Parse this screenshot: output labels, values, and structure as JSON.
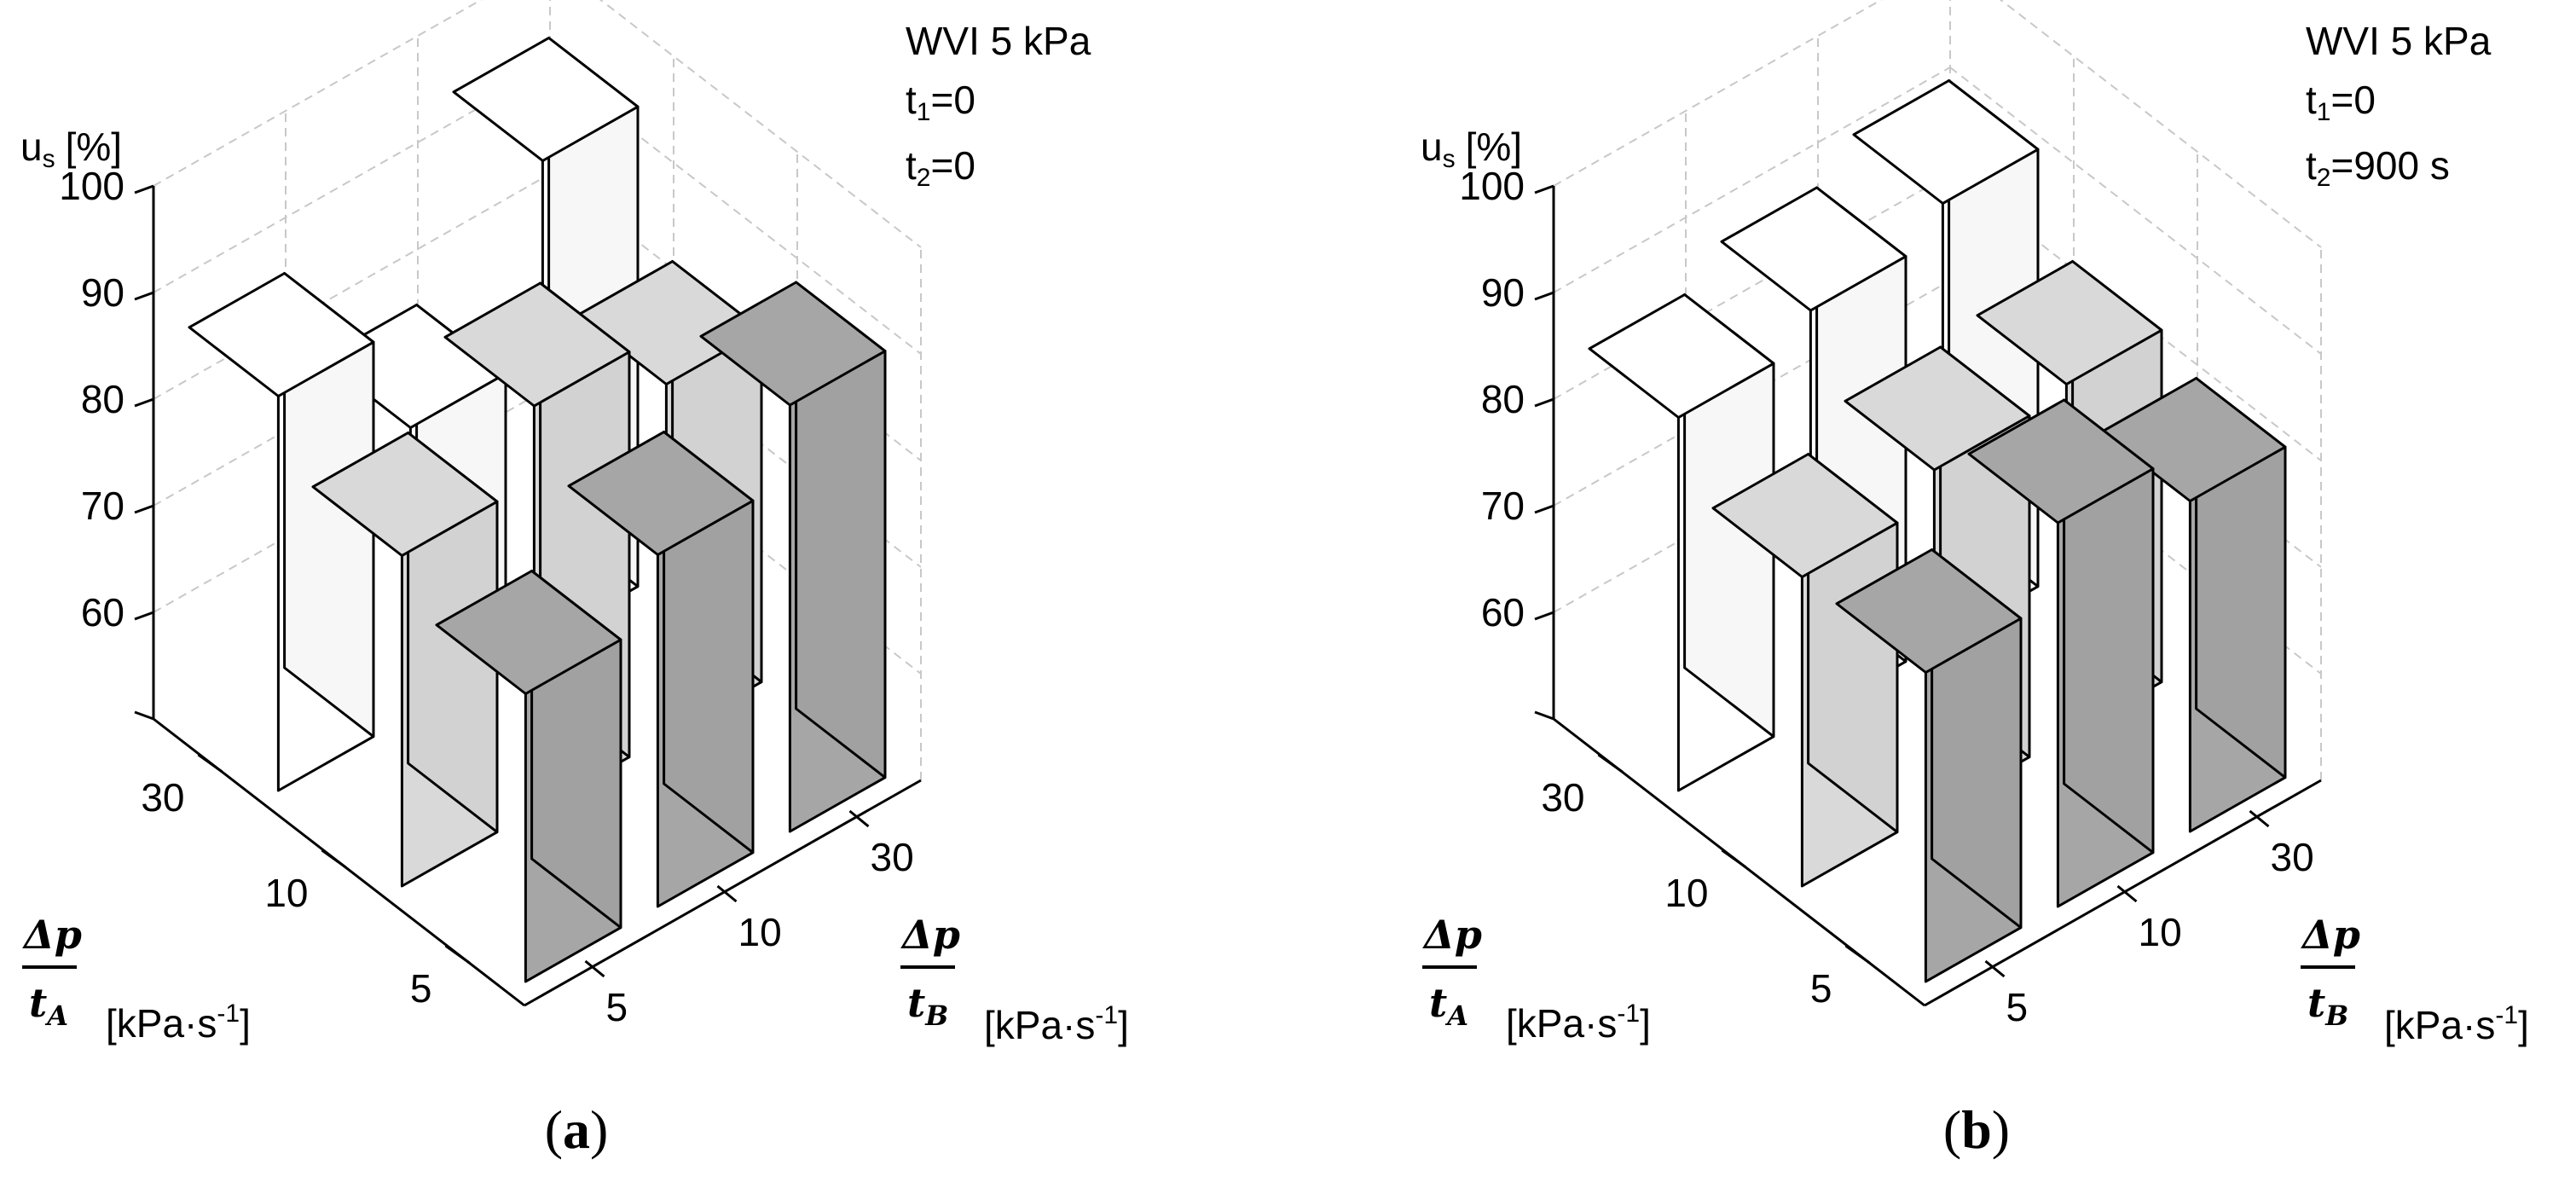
{
  "chart_data": [
    {
      "type": "bar3d",
      "panel_label": "a",
      "annotations": [
        "WVI 5 kPa",
        "t1=0",
        "t2=0"
      ],
      "zlabel": "us [%]",
      "zlim": [
        50,
        100
      ],
      "zticks": [
        60,
        70,
        80,
        90,
        100
      ],
      "xlabel": "Δp/tA [kPa·s-1]",
      "ylabel": "Δp/tB [kPa·s-1]",
      "x_categories": [
        "30",
        "10",
        "5"
      ],
      "y_categories": [
        "5",
        "10",
        "30"
      ],
      "series": [
        {
          "name": "30",
          "color": "#ffffff",
          "values": [
            87,
            77,
            95
          ]
        },
        {
          "name": "10",
          "color": "#d9d9d9",
          "values": [
            81,
            88,
            83
          ]
        },
        {
          "name": "5",
          "color": "#a6a6a6",
          "values": [
            77,
            83,
            90
          ]
        }
      ]
    },
    {
      "type": "bar3d",
      "panel_label": "b",
      "annotations": [
        "WVI 5 kPa",
        "t1=0",
        "t2=900 s"
      ],
      "zlabel": "us [%]",
      "zlim": [
        50,
        100
      ],
      "zticks": [
        60,
        70,
        80,
        90,
        100
      ],
      "xlabel": "Δp/tA [kPa·s-1]",
      "ylabel": "Δp/tB [kPa·s-1]",
      "x_categories": [
        "30",
        "10",
        "5"
      ],
      "y_categories": [
        "5",
        "10",
        "30"
      ],
      "series": [
        {
          "name": "30",
          "color": "#ffffff",
          "values": [
            85,
            88,
            91
          ]
        },
        {
          "name": "10",
          "color": "#d9d9d9",
          "values": [
            79,
            82,
            83
          ]
        },
        {
          "name": "5",
          "color": "#a6a6a6",
          "values": [
            79,
            86,
            81
          ]
        }
      ]
    }
  ],
  "figure": {
    "labels": {
      "zlabel_main": "u",
      "zlabel_sub": "s",
      "zlabel_unit": "[%]",
      "ann_line1": "WVI 5 kPa",
      "t1_main": "t",
      "t1_sub": "1",
      "t1_val": "=0",
      "t2_main": "t",
      "t2_sub": "2",
      "frac_num": "Δp",
      "frac_den_main": "t",
      "frac_den_subA": "A",
      "frac_den_subB": "B",
      "unit_main": "[kPa·s",
      "unit_sup": "-1",
      "unit_close": "]"
    },
    "panels": [
      {
        "t2_val": "=0",
        "caption_open": "(",
        "caption_letter": "a",
        "caption_close": ")"
      },
      {
        "t2_val": "=900 s",
        "caption_open": "(",
        "caption_letter": "b",
        "caption_close": ")"
      }
    ]
  }
}
